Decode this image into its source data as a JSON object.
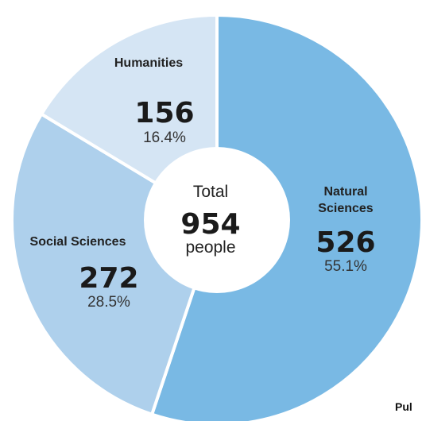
{
  "chart_data": {
    "type": "pie",
    "variant": "donut",
    "categories": [
      "Natural Sciences",
      "Social Sciences",
      "Humanities"
    ],
    "category_labels": [
      [
        "Natural",
        "Sciences"
      ],
      [
        "Social Sciences"
      ],
      [
        "Humanities"
      ]
    ],
    "values": [
      526,
      272,
      156
    ],
    "percent_labels": [
      "55.1%",
      "28.5%",
      "16.4%"
    ],
    "colors": [
      "#79b9e4",
      "#aed0ec",
      "#d5e5f4"
    ],
    "center": {
      "top": "Total",
      "value": "954",
      "unit": "people"
    }
  },
  "footer": {
    "text": "Pul"
  }
}
